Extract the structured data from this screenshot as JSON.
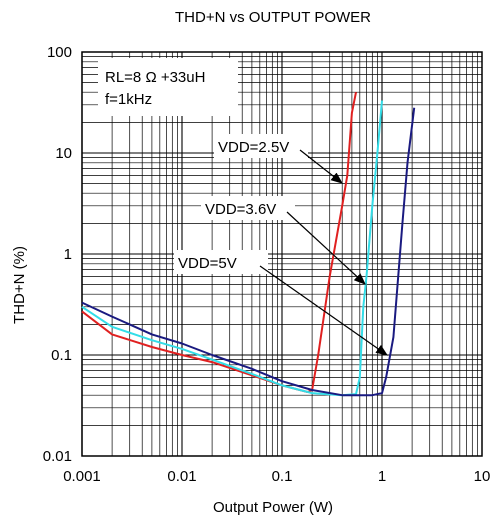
{
  "chart_data": {
    "type": "line",
    "title": "THD+N vs OUTPUT POWER",
    "xlabel": "Output Power (W)",
    "ylabel": "THD+N (%)",
    "xscale": "log",
    "yscale": "log",
    "xlim": [
      0.001,
      10
    ],
    "ylim": [
      0.01,
      100
    ],
    "grid": true,
    "x_tick_labels": [
      "0.001",
      "0.01",
      "0.1",
      "1",
      "10"
    ],
    "y_tick_labels": [
      "100",
      "10",
      "1",
      "0.1",
      "0.01"
    ],
    "conditions": [
      "RL=8 Ω +33uH",
      "f=1kHz"
    ],
    "annotations": [
      {
        "text": "VDD=2.5V",
        "points_to_series": 0
      },
      {
        "text": "VDD=3.6V",
        "points_to_series": 1
      },
      {
        "text": "VDD=5V",
        "points_to_series": 2
      }
    ],
    "series": [
      {
        "name": "VDD=2.5V",
        "color": "#e02020",
        "points": [
          [
            0.001,
            0.27
          ],
          [
            0.002,
            0.16
          ],
          [
            0.005,
            0.12
          ],
          [
            0.01,
            0.1
          ],
          [
            0.02,
            0.085
          ],
          [
            0.05,
            0.063
          ],
          [
            0.1,
            0.05
          ],
          [
            0.18,
            0.043
          ],
          [
            0.2,
            0.045
          ],
          [
            0.23,
            0.1
          ],
          [
            0.3,
            0.6
          ],
          [
            0.4,
            3
          ],
          [
            0.45,
            6
          ],
          [
            0.5,
            25
          ],
          [
            0.55,
            40
          ]
        ]
      },
      {
        "name": "VDD=3.6V",
        "color": "#33dde8",
        "points": [
          [
            0.001,
            0.3
          ],
          [
            0.002,
            0.19
          ],
          [
            0.005,
            0.14
          ],
          [
            0.01,
            0.115
          ],
          [
            0.02,
            0.09
          ],
          [
            0.05,
            0.065
          ],
          [
            0.1,
            0.05
          ],
          [
            0.2,
            0.042
          ],
          [
            0.4,
            0.04
          ],
          [
            0.55,
            0.041
          ],
          [
            0.6,
            0.06
          ],
          [
            0.65,
            0.3
          ],
          [
            0.7,
            0.6
          ],
          [
            0.8,
            3
          ],
          [
            0.9,
            10
          ],
          [
            1.0,
            33
          ]
        ]
      },
      {
        "name": "VDD=5V",
        "color": "#1a1a80",
        "points": [
          [
            0.001,
            0.33
          ],
          [
            0.002,
            0.24
          ],
          [
            0.005,
            0.16
          ],
          [
            0.01,
            0.13
          ],
          [
            0.02,
            0.1
          ],
          [
            0.05,
            0.073
          ],
          [
            0.1,
            0.055
          ],
          [
            0.2,
            0.045
          ],
          [
            0.4,
            0.04
          ],
          [
            0.8,
            0.04
          ],
          [
            1.0,
            0.042
          ],
          [
            1.1,
            0.06
          ],
          [
            1.3,
            0.15
          ],
          [
            1.6,
            2
          ],
          [
            1.8,
            8
          ],
          [
            2.1,
            28
          ]
        ]
      }
    ]
  }
}
